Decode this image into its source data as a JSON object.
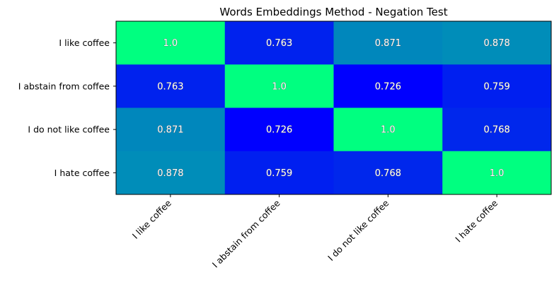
{
  "chart_data": {
    "type": "heatmap",
    "title": "Words Embeddings Method - Negation Test",
    "row_labels": [
      "I like coffee",
      "I abstain from coffee",
      "I do not like coffee",
      "I hate coffee"
    ],
    "col_labels": [
      "I like coffee",
      "I abstain from coffee",
      "I do not like coffee",
      "I hate coffee"
    ],
    "values": [
      [
        1.0,
        0.763,
        0.871,
        0.878
      ],
      [
        0.763,
        1.0,
        0.726,
        0.759
      ],
      [
        0.871,
        0.726,
        1.0,
        0.768
      ],
      [
        0.878,
        0.759,
        0.768,
        1.0
      ]
    ],
    "value_labels": [
      [
        "1.0",
        "0.763",
        "0.871",
        "0.878"
      ],
      [
        "0.763",
        "1.0",
        "0.726",
        "0.759"
      ],
      [
        "0.871",
        "0.726",
        "1.0",
        "0.768"
      ],
      [
        "0.878",
        "0.759",
        "0.768",
        "1.0"
      ]
    ],
    "colormap": "winter",
    "colormap_range": [
      0.726,
      1.0
    ],
    "colormap_colors": [
      "#0000ff",
      "#00ff80"
    ],
    "xlabel": "",
    "ylabel": "",
    "grid": false,
    "legend": "none"
  }
}
